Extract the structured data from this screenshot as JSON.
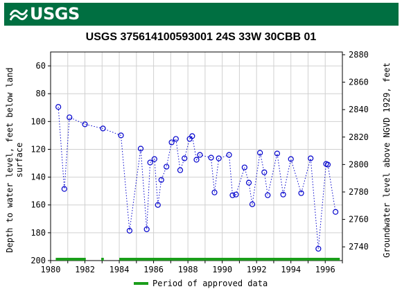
{
  "header": {
    "logo_text": "USGS",
    "logo_icon": "usgs-wave-icon",
    "brand_color": "#006f41"
  },
  "chart_data": {
    "type": "scatter",
    "title": "USGS 375614100593001 24S 33W 30CBB 01",
    "ylabel_left": [
      "Depth to water level, feet below land",
      "surface"
    ],
    "ylabel_right": "Groundwater level above NGVD 1929, feet",
    "xlim": [
      1980,
      1997
    ],
    "ylim_left": [
      200,
      50
    ],
    "ylim_right": [
      2730,
      2882
    ],
    "x_ticks": [
      1980,
      1982,
      1984,
      1986,
      1988,
      1990,
      1992,
      1994,
      1996
    ],
    "y_ticks_left": [
      60,
      80,
      100,
      120,
      140,
      160,
      180,
      200
    ],
    "y_ticks_right": [
      2740,
      2760,
      2780,
      2800,
      2820,
      2840,
      2860,
      2880
    ],
    "grid": true,
    "series": [
      {
        "marker": "open-circle",
        "line": "dotted",
        "color": "#0000cc",
        "points": [
          [
            1980.45,
            89.5
          ],
          [
            1980.8,
            148.5
          ],
          [
            1981.1,
            97
          ],
          [
            1982.0,
            102
          ],
          [
            1983.05,
            105
          ],
          [
            1984.1,
            110
          ],
          [
            1984.6,
            178.5
          ],
          [
            1985.25,
            119.5
          ],
          [
            1985.6,
            177.5
          ],
          [
            1985.8,
            129.5
          ],
          [
            1986.05,
            127
          ],
          [
            1986.25,
            160
          ],
          [
            1986.45,
            142
          ],
          [
            1986.75,
            132.5
          ],
          [
            1987.05,
            115
          ],
          [
            1987.3,
            112.5
          ],
          [
            1987.55,
            135
          ],
          [
            1987.8,
            126.5
          ],
          [
            1988.1,
            112.5
          ],
          [
            1988.25,
            110.5
          ],
          [
            1988.5,
            127.5
          ],
          [
            1988.7,
            124
          ],
          [
            1989.35,
            126
          ],
          [
            1989.55,
            151
          ],
          [
            1989.8,
            126.5
          ],
          [
            1990.4,
            124
          ],
          [
            1990.6,
            153
          ],
          [
            1990.8,
            152.5
          ],
          [
            1991.3,
            133
          ],
          [
            1991.55,
            144
          ],
          [
            1991.75,
            159.5
          ],
          [
            1992.2,
            122.5
          ],
          [
            1992.45,
            136.5
          ],
          [
            1992.65,
            153
          ],
          [
            1993.2,
            123
          ],
          [
            1993.55,
            152.5
          ],
          [
            1994.0,
            127
          ],
          [
            1994.6,
            151.5
          ],
          [
            1995.15,
            126.5
          ],
          [
            1995.6,
            191.5
          ],
          [
            1996.05,
            130.5
          ],
          [
            1996.15,
            131
          ],
          [
            1996.6,
            165
          ]
        ]
      }
    ],
    "approved_periods": [
      [
        1980.3,
        1982.05
      ],
      [
        1982.95,
        1983.1
      ],
      [
        1984.0,
        1996.85
      ]
    ],
    "approved_color": "#1a9e1a",
    "legend": {
      "label": "Period of approved data",
      "position": "bottom-center"
    }
  }
}
